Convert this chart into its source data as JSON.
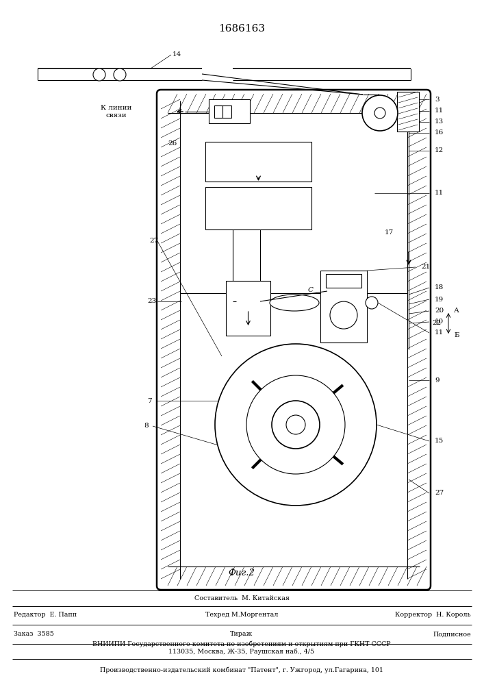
{
  "title": "1686163",
  "fig_label": "Фиг.2",
  "bg_color": "#ffffff",
  "footer": {
    "line1_center": "Составитель  М. Китайская",
    "line2_left": "Редактор  Е. Папп",
    "line2_center": "Техред М.Моргентал",
    "line2_right": "Корректор  Н. Король",
    "line3_left": "Заказ  3585",
    "line3_center": "Тираж",
    "line3_right": "Подписное",
    "line4": "ВНИИПИ Государственного комитета по изобретениям и открытиям при ГКНТ СССР",
    "line5": "113035, Москва, Ж-35, Раушская наб., 4/5",
    "line6": "Производственно-издательский комбинат \"Патент\", г. Ужгород, ул.Гагарина, 101"
  },
  "k_linii": "К линии\nсвязи"
}
